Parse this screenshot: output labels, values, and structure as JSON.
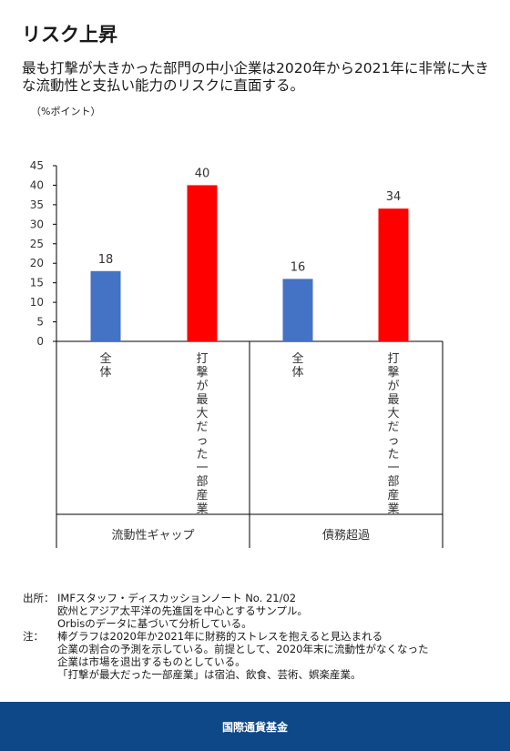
{
  "title": "リスク上昇",
  "subtitle": "最も打撃が大きかった部門の中小企業は2020年から2021年に非常に大きな流動性と支払い能力のリスクに直面する。",
  "unit_label": "（%ポイント）",
  "chart_data": {
    "type": "bar",
    "title": "",
    "ylabel": "（%ポイント）",
    "ylim": [
      0,
      45
    ],
    "yticks": [
      0,
      5,
      10,
      15,
      20,
      25,
      30,
      35,
      40,
      45
    ],
    "grid": false,
    "groups": [
      {
        "label": "流動性ギャップ",
        "bars": [
          {
            "category": "全体",
            "value": 18,
            "color": "#4472c4"
          },
          {
            "category": "打撃が最大だった一部産業",
            "value": 40,
            "color": "#ff0000"
          }
        ]
      },
      {
        "label": "債務超過",
        "bars": [
          {
            "category": "全体",
            "value": 16,
            "color": "#4472c4"
          },
          {
            "category": "打撃が最大だった一部産業",
            "value": 34,
            "color": "#ff0000"
          }
        ]
      }
    ]
  },
  "source": {
    "label": "出所：",
    "lines": [
      "IMFスタッフ・ディスカッションノート No. 21/02",
      "欧州とアジア太平洋の先進国を中心とするサンプル。",
      "Orbisのデータに基づいて分析している。"
    ]
  },
  "note": {
    "label": "注：",
    "lines": [
      "棒グラフは2020年か2021年に財務的ストレスを抱えると見込まれる",
      "企業の割合の予測を示している。前提として、2020年末に流動性がなくなった",
      "企業は市場を退出するものとしている。",
      "「打撃が最大だった一部産業」は宿泊、飲食、芸術、娯楽産業。"
    ]
  },
  "footer": "国際通貨基金"
}
